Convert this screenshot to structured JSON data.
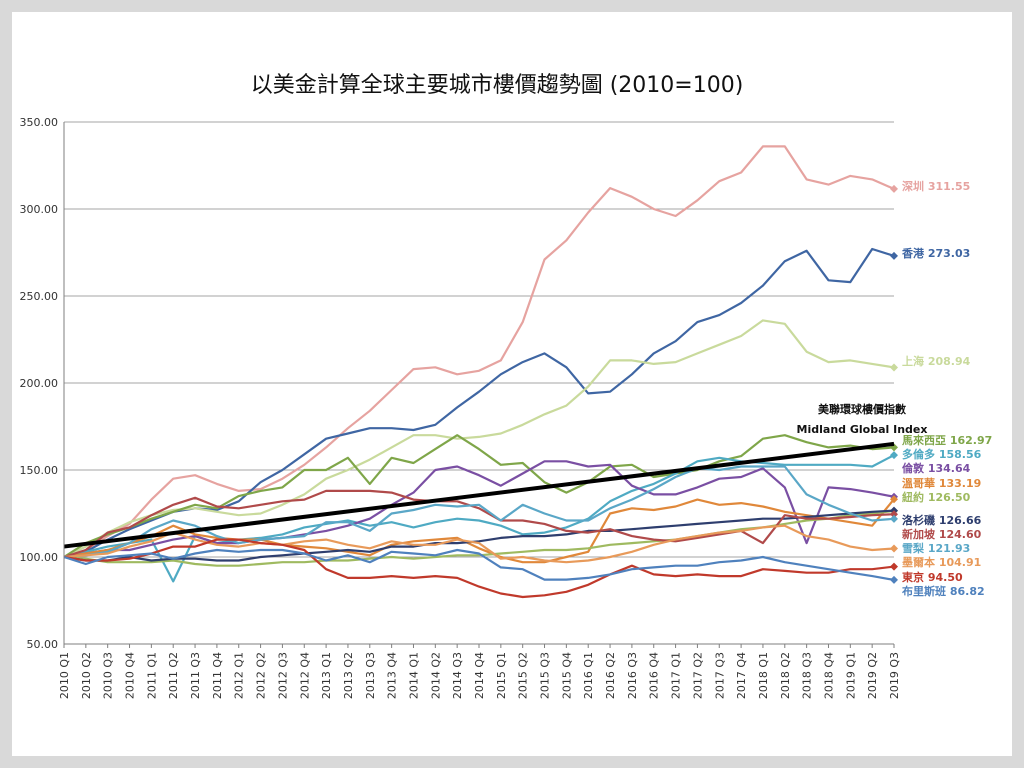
{
  "chart_data": {
    "type": "line",
    "title": "以美金計算全球主要城市樓價趨勢圖 (2010=100)",
    "ylim": [
      50,
      350
    ],
    "y_ticks": [
      "50.00",
      "100.00",
      "150.00",
      "200.00",
      "250.00",
      "300.00",
      "350.00"
    ],
    "grid": true,
    "x": [
      "2010 Q1",
      "2010 Q2",
      "2010 Q3",
      "2010 Q4",
      "2011 Q1",
      "2011 Q2",
      "2011 Q3",
      "2011 Q4",
      "2012 Q1",
      "2012 Q2",
      "2012 Q3",
      "2012 Q4",
      "2013 Q1",
      "2013 Q2",
      "2013 Q3",
      "2013 Q4",
      "2014 Q1",
      "2014 Q2",
      "2014 Q3",
      "2014 Q4",
      "2015 Q1",
      "2015 Q2",
      "2015 Q3",
      "2015 Q4",
      "2016 Q1",
      "2016 Q2",
      "2016 Q3",
      "2016 Q4",
      "2017 Q1",
      "2017 Q2",
      "2017 Q3",
      "2017 Q4",
      "2018 Q1",
      "2018 Q2",
      "2018 Q3",
      "2018 Q4",
      "2019 Q1",
      "2019 Q2",
      "2019 Q3"
    ],
    "series": [
      {
        "name": "深圳",
        "label": "深圳 311.55",
        "color": "#e6a3a0",
        "marker": "diamond",
        "values": [
          100,
          104,
          112,
          119,
          133,
          145,
          147,
          142,
          138,
          139,
          145,
          153,
          163,
          174,
          184,
          196,
          208,
          209,
          205,
          207,
          213,
          235,
          271,
          282,
          298,
          312,
          307,
          300,
          296,
          305,
          316,
          321,
          336,
          336,
          317,
          314,
          319,
          317,
          311.55
        ]
      },
      {
        "name": "香港",
        "label": "香港 273.03",
        "color": "#3f66a3",
        "marker": "diamond",
        "values": [
          100,
          103,
          110,
          116,
          121,
          126,
          128,
          127,
          132,
          143,
          150,
          159,
          168,
          171,
          174,
          174,
          173,
          176,
          186,
          195,
          205,
          212,
          217,
          209,
          194,
          195,
          205,
          217,
          224,
          235,
          239,
          246,
          256,
          270,
          276,
          259,
          258,
          277,
          273.03
        ]
      },
      {
        "name": "上海",
        "label": "上海 208.94",
        "color": "#c9da9c",
        "marker": "diamond",
        "values": [
          100,
          106,
          114,
          120,
          124,
          127,
          128,
          126,
          124,
          125,
          130,
          136,
          145,
          150,
          156,
          163,
          170,
          170,
          168,
          169,
          171,
          176,
          182,
          187,
          198,
          213,
          213,
          211,
          212,
          217,
          222,
          227,
          236,
          234,
          218,
          212,
          213,
          211,
          208.94
        ]
      },
      {
        "name": "馬來西亞",
        "label": "馬來西亞 162.97",
        "color": "#7fa649",
        "marker": "diamond",
        "values": [
          100,
          108,
          113,
          117,
          122,
          126,
          130,
          128,
          135,
          138,
          140,
          150,
          150,
          157,
          142,
          157,
          154,
          162,
          170,
          162,
          153,
          154,
          143,
          137,
          143,
          152,
          153,
          146,
          148,
          150,
          155,
          158,
          168,
          170,
          166,
          163,
          164,
          162,
          162.97
        ]
      },
      {
        "name": "多倫多",
        "label": "多倫多 158.56",
        "color": "#4faac3",
        "marker": "diamond",
        "values": [
          100,
          103,
          106,
          108,
          110,
          86,
          112,
          108,
          110,
          111,
          113,
          117,
          119,
          121,
          118,
          120,
          117,
          120,
          122,
          121,
          118,
          113,
          114,
          117,
          122,
          132,
          138,
          142,
          148,
          155,
          157,
          155,
          154,
          153,
          153,
          153,
          153,
          152,
          158.56
        ]
      },
      {
        "name": "倫敦",
        "label": "倫敦 134.64",
        "color": "#7a4fa3",
        "marker": "diamond",
        "values": [
          100,
          102,
          104,
          104,
          107,
          110,
          112,
          108,
          108,
          110,
          111,
          113,
          115,
          118,
          122,
          130,
          137,
          150,
          152,
          147,
          141,
          148,
          155,
          155,
          152,
          153,
          141,
          136,
          136,
          140,
          145,
          146,
          151,
          140,
          108,
          140,
          139,
          137,
          134.64
        ]
      },
      {
        "name": "溫哥華",
        "label": "溫哥華 133.19",
        "color": "#e0883a",
        "marker": "diamond",
        "values": [
          100,
          102,
          104,
          108,
          112,
          118,
          113,
          111,
          110,
          110,
          107,
          106,
          105,
          103,
          101,
          107,
          109,
          110,
          111,
          105,
          100,
          97,
          97,
          100,
          103,
          125,
          128,
          127,
          129,
          133,
          130,
          131,
          129,
          126,
          124,
          122,
          120,
          118,
          133.19
        ]
      },
      {
        "name": "紐約",
        "label": "紐約 126.50",
        "color": "#9fba60",
        "marker": "diamond",
        "values": [
          100,
          99,
          97,
          97,
          97,
          98,
          96,
          95,
          95,
          96,
          97,
          97,
          98,
          98,
          99,
          100,
          99,
          100,
          101,
          101,
          102,
          103,
          104,
          104,
          105,
          107,
          108,
          109,
          110,
          112,
          114,
          116,
          117,
          119,
          121,
          122,
          124,
          125,
          126.5
        ]
      },
      {
        "name": "洛杉磯",
        "label": "洛杉磯 126.66",
        "color": "#2e3e6e",
        "marker": "diamond",
        "values": [
          100,
          98,
          98,
          100,
          98,
          99,
          99,
          98,
          98,
          100,
          101,
          102,
          103,
          104,
          103,
          106,
          106,
          108,
          108,
          109,
          111,
          112,
          112,
          113,
          115,
          115,
          116,
          117,
          118,
          119,
          120,
          121,
          122,
          122,
          123,
          124,
          125,
          126,
          126.66
        ]
      },
      {
        "name": "新加坡",
        "label": "新加坡 124.60",
        "color": "#b04a4a",
        "marker": "diamond",
        "values": [
          100,
          104,
          114,
          117,
          124,
          130,
          134,
          129,
          128,
          130,
          132,
          133,
          138,
          138,
          138,
          137,
          133,
          132,
          132,
          128,
          121,
          121,
          119,
          115,
          114,
          116,
          112,
          110,
          109,
          111,
          113,
          115,
          108,
          124,
          122,
          122,
          123,
          124,
          124.6
        ]
      },
      {
        "name": "雪梨",
        "label": "雪梨 121.93",
        "color": "#5aa7c7",
        "marker": "diamond",
        "values": [
          100,
          101,
          103,
          108,
          116,
          121,
          118,
          112,
          108,
          110,
          111,
          112,
          120,
          120,
          115,
          125,
          127,
          130,
          129,
          130,
          121,
          130,
          125,
          121,
          121,
          128,
          133,
          139,
          146,
          151,
          150,
          152,
          152,
          152,
          136,
          130,
          125,
          121,
          121.93
        ]
      },
      {
        "name": "墨爾本",
        "label": "墨爾本 104.91",
        "color": "#e89a5a",
        "marker": "diamond",
        "values": [
          100,
          101,
          102,
          106,
          109,
          114,
          110,
          107,
          106,
          108,
          107,
          109,
          110,
          107,
          105,
          109,
          107,
          107,
          110,
          108,
          99,
          100,
          98,
          97,
          98,
          100,
          103,
          107,
          110,
          112,
          114,
          115,
          117,
          118,
          112,
          110,
          106,
          104,
          104.91
        ]
      },
      {
        "name": "東京",
        "label": "東京 94.50",
        "color": "#c0392b",
        "marker": "diamond",
        "values": [
          100,
          98,
          98,
          99,
          102,
          106,
          106,
          110,
          110,
          108,
          107,
          104,
          93,
          88,
          88,
          89,
          88,
          89,
          88,
          83,
          79,
          77,
          78,
          80,
          84,
          90,
          95,
          90,
          89,
          90,
          89,
          89,
          93,
          92,
          91,
          91,
          93,
          93,
          94.5
        ]
      },
      {
        "name": "布里斯班",
        "label": "布里斯班 86.82",
        "color": "#4f81bd",
        "marker": "diamond",
        "values": [
          100,
          96,
          100,
          101,
          102,
          99,
          102,
          104,
          103,
          104,
          104,
          102,
          98,
          101,
          97,
          103,
          102,
          101,
          104,
          102,
          94,
          93,
          87,
          87,
          88,
          90,
          93,
          94,
          95,
          95,
          97,
          98,
          100,
          97,
          95,
          93,
          91,
          89,
          86.82
        ]
      }
    ],
    "index_line": {
      "label_cn": "美聯環球樓價指數",
      "label_en": "Midland Global Index",
      "start": 106,
      "end": 165,
      "color": "#000000"
    }
  }
}
